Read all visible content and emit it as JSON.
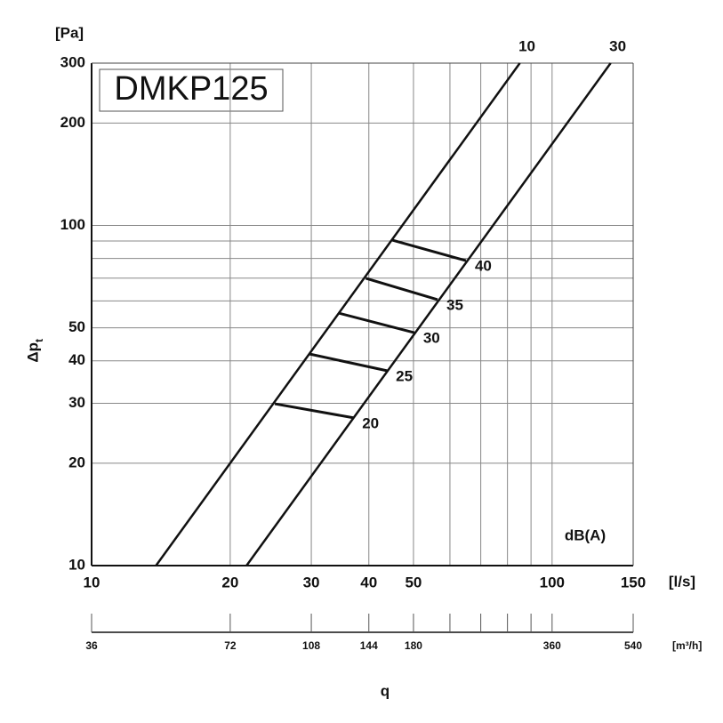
{
  "chart_data": {
    "type": "line",
    "title": "DMKP125",
    "xlabel": "q",
    "xunit": "[l/s]",
    "yunit": "[Pa]",
    "ylabel": {
      "text": "Δp",
      "subscript": "t"
    },
    "annotation": "dB(A)",
    "xscale": "log",
    "yscale": "log",
    "grid": true,
    "xlim": [
      10,
      150
    ],
    "xticks": [
      10,
      20,
      30,
      40,
      50,
      100,
      150
    ],
    "xminor": [
      60,
      70,
      80,
      90
    ],
    "ylim": [
      10,
      300
    ],
    "yticks": [
      10,
      20,
      30,
      40,
      50,
      100,
      200,
      300
    ],
    "yminor": [
      60,
      70,
      80,
      90
    ],
    "x2lim": [
      36,
      540
    ],
    "x2ticks": [
      36,
      72,
      108,
      144,
      180,
      360,
      540
    ],
    "x2minor": [
      216,
      252,
      288,
      324
    ],
    "x2unit": "[m³/h]",
    "color": "#111111",
    "series": [
      {
        "name": "10",
        "x": [
          13.8,
          85.1
        ],
        "y": [
          10,
          300
        ]
      },
      {
        "name": "30",
        "x": [
          21.7,
          134
        ],
        "y": [
          10,
          300
        ]
      }
    ],
    "noise_lines": [
      {
        "name": "20",
        "x": [
          25.0,
          37.0
        ],
        "y": [
          29.9,
          27.2
        ]
      },
      {
        "name": "25",
        "x": [
          29.7,
          43.8
        ],
        "y": [
          41.9,
          37.4
        ]
      },
      {
        "name": "30",
        "x": [
          34.3,
          50.2
        ],
        "y": [
          55.3,
          48.4
        ]
      },
      {
        "name": "35",
        "x": [
          39.4,
          56.4
        ],
        "y": [
          69.9,
          60.5
        ]
      },
      {
        "name": "40",
        "x": [
          45.0,
          65.0
        ],
        "y": [
          90.5,
          78.8
        ]
      }
    ]
  }
}
